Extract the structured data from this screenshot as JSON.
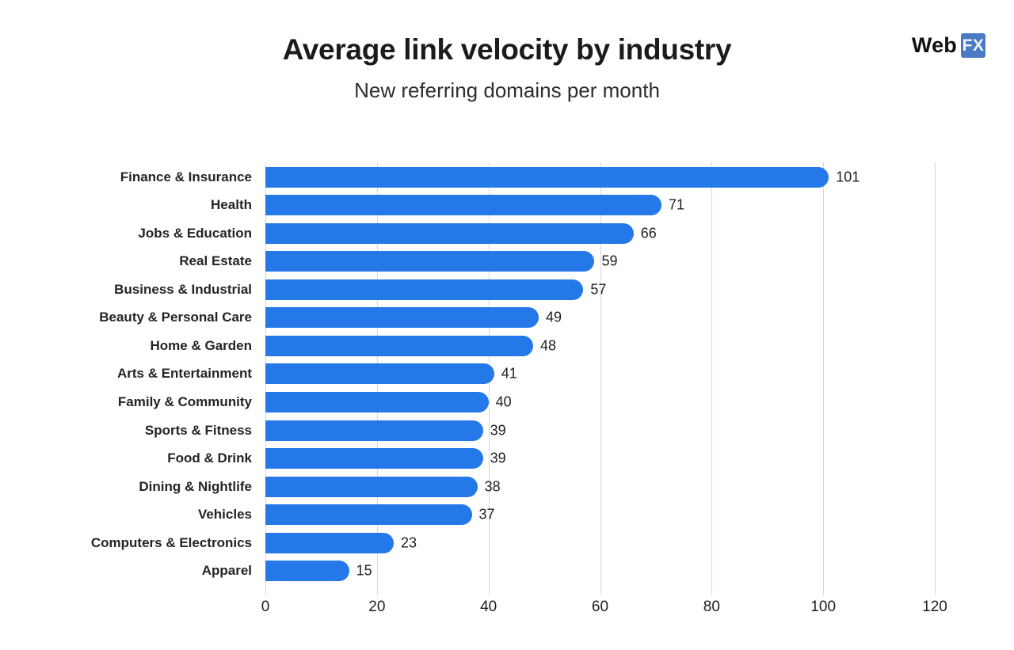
{
  "header": {
    "title": "Average link velocity by industry",
    "subtitle": "New referring domains per month"
  },
  "logo": {
    "text_prefix": "Web",
    "text_suffix": "FX",
    "suffix_bg": "#4B7AC5",
    "suffix_fg": "#F2F4F8"
  },
  "chart_data": {
    "type": "bar",
    "orientation": "horizontal",
    "title": "Average link velocity by industry",
    "subtitle": "New referring domains per month",
    "categories": [
      "Finance & Insurance",
      "Health",
      "Jobs & Education",
      "Real Estate",
      "Business & Industrial",
      "Beauty & Personal Care",
      "Home & Garden",
      "Arts & Entertainment",
      "Family & Community",
      "Sports & Fitness",
      "Food & Drink",
      "Dining & Nightlife",
      "Vehicles",
      "Computers & Electronics",
      "Apparel"
    ],
    "values": [
      101,
      71,
      66,
      59,
      57,
      49,
      48,
      41,
      40,
      39,
      39,
      38,
      37,
      23,
      15
    ],
    "xlabel": "",
    "ylabel": "",
    "xlim": [
      0,
      120
    ],
    "xticks": [
      0,
      20,
      40,
      60,
      80,
      100,
      120
    ],
    "grid": "vertical-gridlines-on",
    "legend": "none",
    "value_labels": true,
    "bar_color": "#2478E8",
    "gridline_color": "#D8D8D8"
  }
}
